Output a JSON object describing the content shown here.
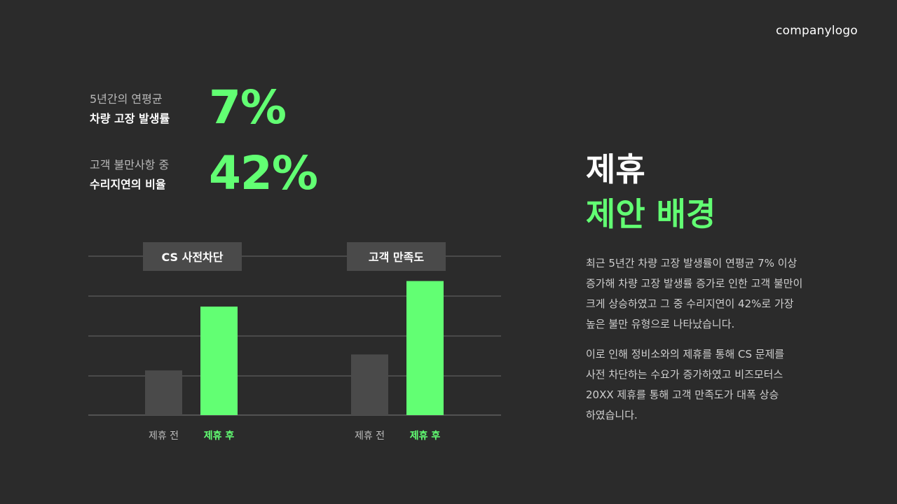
{
  "logo": "companylogo",
  "stats": [
    {
      "line1": "5년간의 연평균",
      "line2": "차량 고장 발생률",
      "value": "7%"
    },
    {
      "line1": "고객 불만사항 중",
      "line2": "수리지연의 비율",
      "value": "42%"
    }
  ],
  "heading": {
    "line1": "제휴",
    "line2": "제안 배경"
  },
  "body": {
    "p1_lines": [
      "최근 5년간 차량 고장 발생률이 연평균 7% 이상",
      "증가해 차량 고장 발생률 증가로 인한 고객 불만이",
      "크게 상승하였고 그 중 수리지연이 42%로 가장",
      "높은 불만 유형으로 나타났습니다."
    ],
    "p2_lines": [
      "이로 인해 정비소와의 제휴를 통해 CS 문제를",
      "사전 차단하는 수요가 증가하였고 비즈모터스",
      "20XX 제휴를 통해 고객 만족도가 대폭 상승",
      "하였습니다."
    ]
  },
  "colors": {
    "background": "#2b2b2b",
    "accent": "#62ff73",
    "bar_before": "#4a4a4a",
    "label_box": "#4a4a4a",
    "grid": "#6a6a6a"
  },
  "chart_data": {
    "type": "bar",
    "ylim": [
      0,
      100
    ],
    "grid": true,
    "groups": [
      {
        "title": "CS 사전차단",
        "categories": [
          "제휴 전",
          "제휴 후"
        ],
        "values": [
          28,
          68
        ]
      },
      {
        "title": "고객 만족도",
        "categories": [
          "제휴 전",
          "제휴 후"
        ],
        "values": [
          38,
          84
        ]
      }
    ]
  }
}
